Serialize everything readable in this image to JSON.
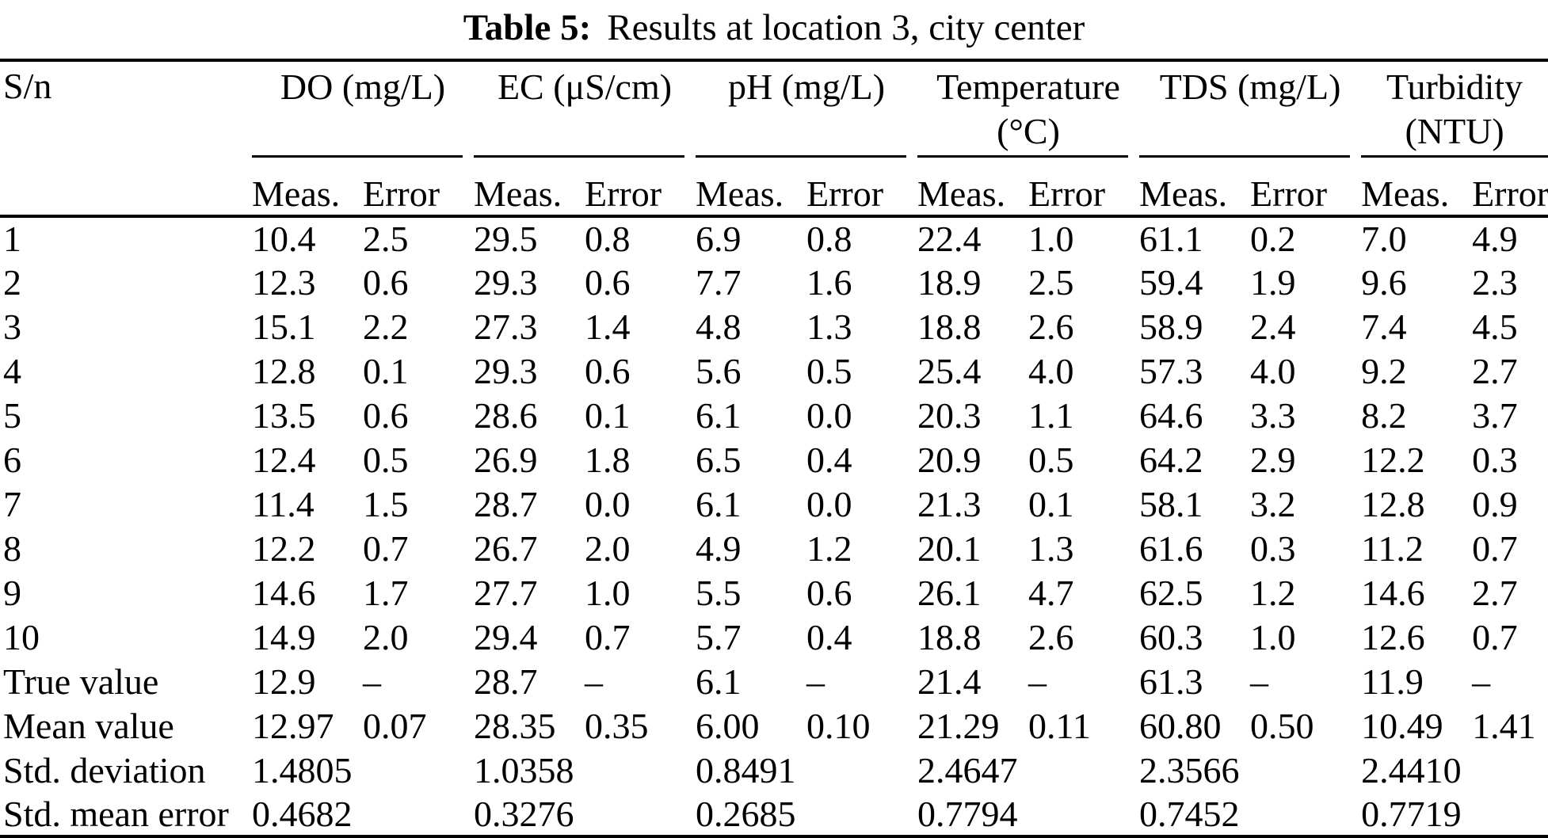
{
  "title": {
    "label": "Table 5:",
    "text": "Results at location 3, city center"
  },
  "colors": {
    "background": "#ffffff",
    "text": "#000000",
    "rule": "#000000"
  },
  "table": {
    "corner_label": "S/n",
    "groups": [
      {
        "line1": "DO (mg/L)",
        "line2": ""
      },
      {
        "line1": "EC (μS/cm)",
        "line2": ""
      },
      {
        "line1": "pH (mg/L)",
        "line2": ""
      },
      {
        "line1": "Temperature",
        "line2": "(°C)"
      },
      {
        "line1": "TDS (mg/L)",
        "line2": ""
      },
      {
        "line1": "Turbidity",
        "line2": "(NTU)"
      }
    ],
    "subheader_cells": [
      "Meas.",
      "Error",
      "Meas.",
      "Error",
      "Meas.",
      "Error",
      "Meas.",
      "Error",
      "Meas.",
      "Error",
      "Meas.",
      "Error"
    ],
    "rows": [
      {
        "label": "1",
        "cells": [
          "10.4",
          "2.5",
          "29.5",
          "0.8",
          "6.9",
          "0.8",
          "22.4",
          "1.0",
          "61.1",
          "0.2",
          "7.0",
          "4.9"
        ]
      },
      {
        "label": "2",
        "cells": [
          "12.3",
          "0.6",
          "29.3",
          "0.6",
          "7.7",
          "1.6",
          "18.9",
          "2.5",
          "59.4",
          "1.9",
          "9.6",
          "2.3"
        ]
      },
      {
        "label": "3",
        "cells": [
          "15.1",
          "2.2",
          "27.3",
          "1.4",
          "4.8",
          "1.3",
          "18.8",
          "2.6",
          "58.9",
          "2.4",
          "7.4",
          "4.5"
        ]
      },
      {
        "label": "4",
        "cells": [
          "12.8",
          "0.1",
          "29.3",
          "0.6",
          "5.6",
          "0.5",
          "25.4",
          "4.0",
          "57.3",
          "4.0",
          "9.2",
          "2.7"
        ]
      },
      {
        "label": "5",
        "cells": [
          "13.5",
          "0.6",
          "28.6",
          "0.1",
          "6.1",
          "0.0",
          "20.3",
          "1.1",
          "64.6",
          "3.3",
          "8.2",
          "3.7"
        ]
      },
      {
        "label": "6",
        "cells": [
          "12.4",
          "0.5",
          "26.9",
          "1.8",
          "6.5",
          "0.4",
          "20.9",
          "0.5",
          "64.2",
          "2.9",
          "12.2",
          "0.3"
        ]
      },
      {
        "label": "7",
        "cells": [
          "11.4",
          "1.5",
          "28.7",
          "0.0",
          "6.1",
          "0.0",
          "21.3",
          "0.1",
          "58.1",
          "3.2",
          "12.8",
          "0.9"
        ]
      },
      {
        "label": "8",
        "cells": [
          "12.2",
          "0.7",
          "26.7",
          "2.0",
          "4.9",
          "1.2",
          "20.1",
          "1.3",
          "61.6",
          "0.3",
          "11.2",
          "0.7"
        ]
      },
      {
        "label": "9",
        "cells": [
          "14.6",
          "1.7",
          "27.7",
          "1.0",
          "5.5",
          "0.6",
          "26.1",
          "4.7",
          "62.5",
          "1.2",
          "14.6",
          "2.7"
        ]
      },
      {
        "label": "10",
        "cells": [
          "14.9",
          "2.0",
          "29.4",
          "0.7",
          "5.7",
          "0.4",
          "18.8",
          "2.6",
          "60.3",
          "1.0",
          "12.6",
          "0.7"
        ]
      },
      {
        "label": "True value",
        "cells": [
          "12.9",
          "–",
          "28.7",
          "–",
          "6.1",
          "–",
          "21.4",
          "–",
          "61.3",
          "–",
          "11.9",
          "–"
        ]
      },
      {
        "label": "Mean value",
        "cells": [
          "12.97",
          "0.07",
          "28.35",
          "0.35",
          "6.00",
          "0.10",
          "21.29",
          "0.11",
          "60.80",
          "0.50",
          "10.49",
          "1.41"
        ]
      },
      {
        "label": "Std. deviation",
        "cells": [
          "1.4805",
          "",
          "1.0358",
          "",
          "0.8491",
          "",
          "2.4647",
          "",
          "2.3566",
          "",
          "2.4410",
          ""
        ]
      },
      {
        "label": "Std. mean error",
        "cells": [
          "0.4682",
          "",
          "0.3276",
          "",
          "0.2685",
          "",
          "0.7794",
          "",
          "0.7452",
          "",
          "0.7719",
          ""
        ]
      }
    ]
  }
}
